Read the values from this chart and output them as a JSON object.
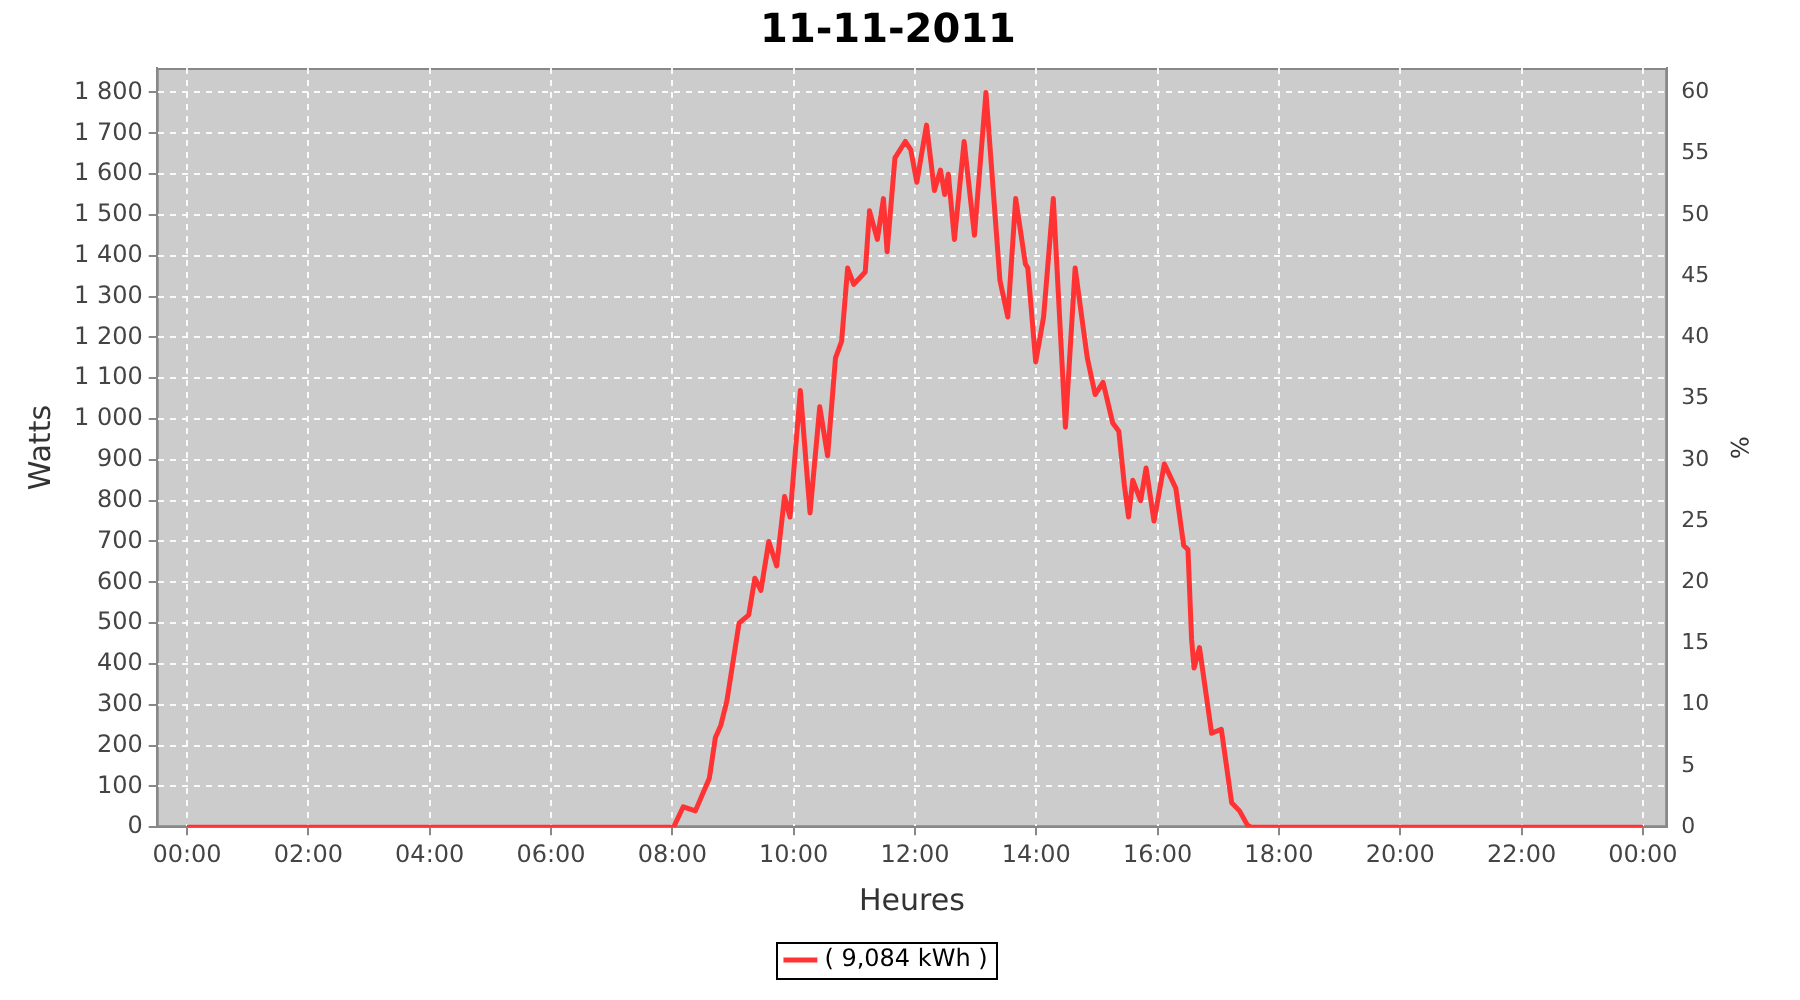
{
  "chart_data": {
    "type": "line",
    "title": "11-11-2011",
    "xlabel": "Heures",
    "ylabel": "Watts",
    "y2label": "%",
    "x": [
      0,
      8.02,
      8.18,
      8.38,
      8.61,
      8.71,
      8.8,
      8.9,
      9.1,
      9.26,
      9.36,
      9.46,
      9.59,
      9.72,
      9.85,
      9.94,
      10.11,
      10.27,
      10.43,
      10.56,
      10.69,
      10.79,
      10.89,
      10.99,
      11.18,
      11.25,
      11.38,
      11.48,
      11.54,
      11.67,
      11.84,
      11.93,
      12.03,
      12.19,
      12.32,
      12.42,
      12.49,
      12.55,
      12.65,
      12.81,
      12.98,
      13.17,
      13.4,
      13.53,
      13.66,
      13.82,
      13.86,
      13.99,
      14.12,
      14.28,
      14.48,
      14.64,
      14.84,
      14.97,
      15.1,
      15.26,
      15.36,
      15.45,
      15.52,
      15.59,
      15.72,
      15.81,
      15.94,
      16.11,
      16.3,
      16.43,
      16.5,
      16.56,
      16.6,
      16.69,
      16.89,
      17.05,
      17.22,
      17.35,
      17.48,
      17.54,
      24
    ],
    "series": [
      {
        "name": "( 9,084 kWh )",
        "color": "#ff3333",
        "values": [
          0,
          0,
          50,
          40,
          120,
          220,
          250,
          310,
          500,
          520,
          610,
          580,
          700,
          640,
          810,
          760,
          1070,
          770,
          1030,
          910,
          1150,
          1190,
          1370,
          1330,
          1360,
          1510,
          1440,
          1540,
          1410,
          1640,
          1680,
          1660,
          1580,
          1720,
          1560,
          1610,
          1550,
          1600,
          1440,
          1680,
          1450,
          1800,
          1340,
          1250,
          1540,
          1380,
          1370,
          1140,
          1250,
          1540,
          980,
          1370,
          1150,
          1060,
          1090,
          990,
          970,
          840,
          760,
          850,
          800,
          880,
          750,
          890,
          830,
          690,
          680,
          460,
          390,
          440,
          230,
          240,
          60,
          40,
          5,
          0,
          0
        ]
      }
    ],
    "xlim": [
      -0.5,
      24.4
    ],
    "xticks": [
      {
        "value": 0,
        "label": "00:00"
      },
      {
        "value": 2,
        "label": "02:00"
      },
      {
        "value": 4,
        "label": "04:00"
      },
      {
        "value": 6,
        "label": "06:00"
      },
      {
        "value": 8,
        "label": "08:00"
      },
      {
        "value": 10,
        "label": "10:00"
      },
      {
        "value": 12,
        "label": "12:00"
      },
      {
        "value": 14,
        "label": "14:00"
      },
      {
        "value": 16,
        "label": "16:00"
      },
      {
        "value": 18,
        "label": "18:00"
      },
      {
        "value": 20,
        "label": "20:00"
      },
      {
        "value": 22,
        "label": "22:00"
      },
      {
        "value": 24,
        "label": "00:00"
      }
    ],
    "ylim": [
      0,
      1860
    ],
    "yticks": [
      0,
      100,
      200,
      300,
      400,
      500,
      600,
      700,
      800,
      900,
      {
        "value": 1000,
        "label": "1 000"
      },
      {
        "value": 1100,
        "label": "1 100"
      },
      {
        "value": 1200,
        "label": "1 200"
      },
      {
        "value": 1300,
        "label": "1 300"
      },
      {
        "value": 1400,
        "label": "1 400"
      },
      {
        "value": 1500,
        "label": "1 500"
      },
      {
        "value": 1600,
        "label": "1 600"
      },
      {
        "value": 1700,
        "label": "1 700"
      },
      {
        "value": 1800,
        "label": "1 800"
      }
    ],
    "y2lim": [
      0,
      62
    ],
    "y2ticks": [
      0,
      5,
      10,
      15,
      20,
      25,
      30,
      35,
      40,
      45,
      50,
      55,
      60
    ],
    "grid": true,
    "legend": "bottom",
    "marker": "none",
    "line_style": "solid"
  }
}
